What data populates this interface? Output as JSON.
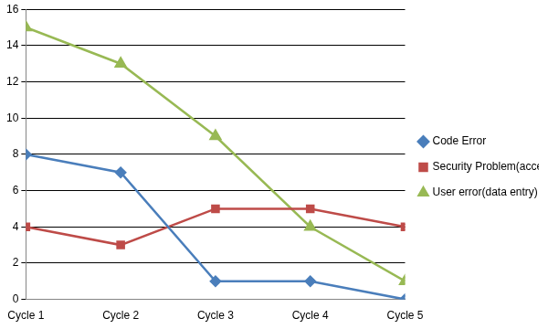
{
  "chart_data": {
    "type": "line",
    "categories": [
      "Cycle 1",
      "Cycle 2",
      "Cycle 3",
      "Cycle 4",
      "Cycle 5"
    ],
    "series": [
      {
        "name": "Code Error",
        "color": "#4a7ebb",
        "marker": "diamond",
        "values": [
          8,
          7,
          1,
          1,
          0
        ]
      },
      {
        "name": "Security Problem(access permissions)",
        "color": "#be4b48",
        "marker": "square",
        "values": [
          4,
          3,
          5,
          5,
          4
        ]
      },
      {
        "name": "User error(data entry)",
        "color": "#98b954",
        "marker": "triangle",
        "values": [
          15,
          13,
          9,
          4,
          1
        ]
      }
    ],
    "ylim": [
      0,
      16
    ],
    "yticks": [
      0,
      2,
      4,
      6,
      8,
      10,
      12,
      14,
      16
    ],
    "grid": true,
    "legend": "right"
  }
}
